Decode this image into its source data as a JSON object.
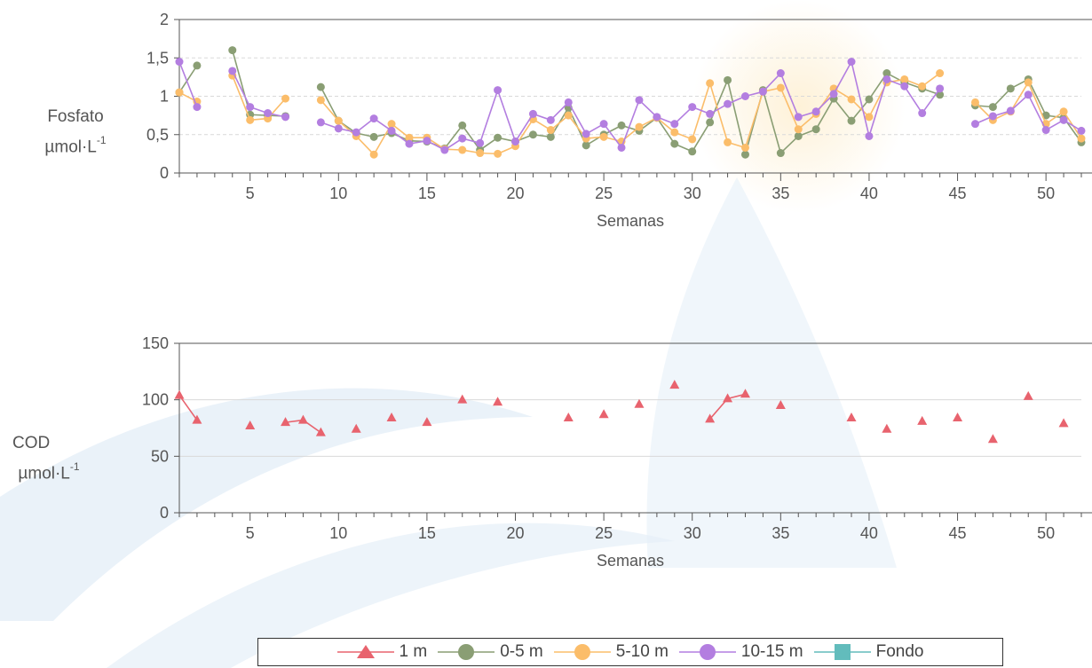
{
  "colors": {
    "1 m": "#e8636e",
    "0-5 m": "#8a9e74",
    "5-10 m": "#fbbd6a",
    "10-15 m": "#b37ee0",
    "Fondo": "#62bcbc",
    "axis": "#555555",
    "grid": "#d9d9d9"
  },
  "legend": [
    {
      "label": "1 m",
      "marker": "triangle",
      "color": "#e8636e"
    },
    {
      "label": "0-5 m",
      "marker": "circle",
      "color": "#8a9e74"
    },
    {
      "label": "5-10 m",
      "marker": "circle",
      "color": "#fbbd6a"
    },
    {
      "label": "10-15 m",
      "marker": "circle",
      "color": "#b37ee0"
    },
    {
      "label": "Fondo",
      "marker": "square",
      "color": "#62bcbc"
    }
  ],
  "chart_data": [
    {
      "type": "line",
      "ylabel": "Fosfato",
      "yunit": "µmol·L",
      "yunit_exp": "-1",
      "xlabel": "Semanas",
      "xlim": [
        1,
        52
      ],
      "ylim": [
        0,
        2
      ],
      "yticks": [
        0,
        0.5,
        1,
        1.5,
        2
      ],
      "ytick_labels": [
        "0",
        "0,5",
        "1",
        "1,5",
        "2"
      ],
      "xticks": [
        5,
        10,
        15,
        20,
        25,
        30,
        35,
        40,
        45,
        50
      ],
      "grid": true,
      "series": [
        {
          "name": "0-5 m",
          "marker": "circle",
          "color": "#8a9e74",
          "points": [
            [
              1,
              1.05
            ],
            [
              2,
              1.4
            ],
            [
              4,
              1.6
            ],
            [
              5,
              0.76
            ],
            [
              6,
              0.75
            ],
            [
              7,
              0.74
            ],
            [
              9,
              1.12
            ],
            [
              10,
              0.68
            ],
            [
              11,
              0.52
            ],
            [
              12,
              0.47
            ],
            [
              13,
              0.52
            ],
            [
              14,
              0.42
            ],
            [
              15,
              0.41
            ],
            [
              16,
              0.32
            ],
            [
              17,
              0.62
            ],
            [
              18,
              0.3
            ],
            [
              19,
              0.46
            ],
            [
              20,
              0.41
            ],
            [
              21,
              0.5
            ],
            [
              22,
              0.47
            ],
            [
              23,
              0.85
            ],
            [
              24,
              0.36
            ],
            [
              25,
              0.5
            ],
            [
              26,
              0.62
            ],
            [
              27,
              0.55
            ],
            [
              28,
              0.72
            ],
            [
              29,
              0.38
            ],
            [
              30,
              0.28
            ],
            [
              31,
              0.66
            ],
            [
              32,
              1.21
            ],
            [
              33,
              0.24
            ],
            [
              34,
              1.08
            ],
            [
              35,
              0.26
            ],
            [
              36,
              0.48
            ],
            [
              37,
              0.57
            ],
            [
              38,
              0.97
            ],
            [
              39,
              0.68
            ],
            [
              40,
              0.96
            ],
            [
              41,
              1.3
            ],
            [
              42,
              1.18
            ],
            [
              43,
              1.1
            ],
            [
              44,
              1.02
            ],
            [
              46,
              0.88
            ],
            [
              47,
              0.86
            ],
            [
              48,
              1.1
            ],
            [
              49,
              1.22
            ],
            [
              50,
              0.75
            ],
            [
              51,
              0.72
            ],
            [
              52,
              0.4
            ]
          ]
        },
        {
          "name": "5-10 m",
          "marker": "circle",
          "color": "#fbbd6a",
          "points": [
            [
              1,
              1.05
            ],
            [
              2,
              0.93
            ],
            [
              4,
              1.27
            ],
            [
              5,
              0.69
            ],
            [
              6,
              0.71
            ],
            [
              7,
              0.97
            ],
            [
              9,
              0.95
            ],
            [
              10,
              0.68
            ],
            [
              11,
              0.48
            ],
            [
              12,
              0.24
            ],
            [
              13,
              0.64
            ],
            [
              14,
              0.46
            ],
            [
              15,
              0.46
            ],
            [
              16,
              0.31
            ],
            [
              17,
              0.3
            ],
            [
              18,
              0.26
            ],
            [
              19,
              0.25
            ],
            [
              20,
              0.35
            ],
            [
              21,
              0.7
            ],
            [
              22,
              0.56
            ],
            [
              23,
              0.75
            ],
            [
              24,
              0.45
            ],
            [
              25,
              0.47
            ],
            [
              26,
              0.41
            ],
            [
              27,
              0.6
            ],
            [
              28,
              0.72
            ],
            [
              29,
              0.53
            ],
            [
              30,
              0.44
            ],
            [
              31,
              1.17
            ],
            [
              32,
              0.4
            ],
            [
              33,
              0.33
            ],
            [
              34,
              1.06
            ],
            [
              35,
              1.11
            ],
            [
              36,
              0.57
            ],
            [
              37,
              0.77
            ],
            [
              38,
              1.1
            ],
            [
              39,
              0.96
            ],
            [
              40,
              0.73
            ],
            [
              41,
              1.18
            ],
            [
              42,
              1.22
            ],
            [
              43,
              1.13
            ],
            [
              44,
              1.3
            ],
            [
              46,
              0.92
            ],
            [
              47,
              0.69
            ],
            [
              48,
              0.8
            ],
            [
              49,
              1.18
            ],
            [
              50,
              0.64
            ],
            [
              51,
              0.8
            ],
            [
              52,
              0.45
            ]
          ]
        },
        {
          "name": "10-15 m",
          "marker": "circle",
          "color": "#b37ee0",
          "points": [
            [
              1,
              1.45
            ],
            [
              2,
              0.86
            ],
            [
              4,
              1.33
            ],
            [
              5,
              0.86
            ],
            [
              6,
              0.78
            ],
            [
              7,
              0.73
            ],
            [
              9,
              0.66
            ],
            [
              10,
              0.58
            ],
            [
              11,
              0.53
            ],
            [
              12,
              0.71
            ],
            [
              13,
              0.55
            ],
            [
              14,
              0.38
            ],
            [
              15,
              0.42
            ],
            [
              16,
              0.3
            ],
            [
              17,
              0.45
            ],
            [
              18,
              0.39
            ],
            [
              19,
              1.08
            ],
            [
              20,
              0.41
            ],
            [
              21,
              0.77
            ],
            [
              22,
              0.69
            ],
            [
              23,
              0.92
            ],
            [
              24,
              0.51
            ],
            [
              25,
              0.64
            ],
            [
              26,
              0.33
            ],
            [
              27,
              0.95
            ],
            [
              28,
              0.73
            ],
            [
              29,
              0.64
            ],
            [
              30,
              0.86
            ],
            [
              31,
              0.77
            ],
            [
              32,
              0.9
            ],
            [
              33,
              1.0
            ],
            [
              34,
              1.06
            ],
            [
              35,
              1.3
            ],
            [
              36,
              0.73
            ],
            [
              37,
              0.8
            ],
            [
              38,
              1.03
            ],
            [
              39,
              1.45
            ],
            [
              40,
              0.48
            ],
            [
              41,
              1.22
            ],
            [
              42,
              1.13
            ],
            [
              43,
              0.78
            ],
            [
              44,
              1.1
            ],
            [
              46,
              0.64
            ],
            [
              47,
              0.74
            ],
            [
              48,
              0.81
            ],
            [
              49,
              1.02
            ],
            [
              50,
              0.56
            ],
            [
              51,
              0.69
            ],
            [
              52,
              0.55
            ]
          ]
        }
      ]
    },
    {
      "type": "line",
      "ylabel": "COD",
      "yunit": "µmol·L",
      "yunit_exp": "-1",
      "xlabel": "Semanas",
      "xlim": [
        1,
        52
      ],
      "ylim": [
        0,
        150
      ],
      "yticks": [
        0,
        50,
        100,
        150
      ],
      "ytick_labels": [
        "0",
        "50",
        "100",
        "150"
      ],
      "xticks": [
        5,
        10,
        15,
        20,
        25,
        30,
        35,
        40,
        45,
        50
      ],
      "grid": true,
      "series": [
        {
          "name": "1 m",
          "marker": "triangle",
          "color": "#e8636e",
          "points": [
            [
              1,
              104
            ],
            [
              2,
              82
            ],
            [
              5,
              77
            ],
            [
              7,
              80
            ],
            [
              8,
              82
            ],
            [
              9,
              71
            ],
            [
              11,
              74
            ],
            [
              13,
              84
            ],
            [
              15,
              80
            ],
            [
              17,
              100
            ],
            [
              19,
              98
            ],
            [
              23,
              84
            ],
            [
              25,
              87
            ],
            [
              27,
              96
            ],
            [
              29,
              113
            ],
            [
              31,
              83
            ],
            [
              32,
              101
            ],
            [
              33,
              105
            ],
            [
              35,
              95
            ],
            [
              39,
              84
            ],
            [
              41,
              74
            ],
            [
              43,
              81
            ],
            [
              45,
              84
            ],
            [
              47,
              65
            ],
            [
              49,
              103
            ],
            [
              51,
              79
            ]
          ]
        }
      ]
    }
  ]
}
